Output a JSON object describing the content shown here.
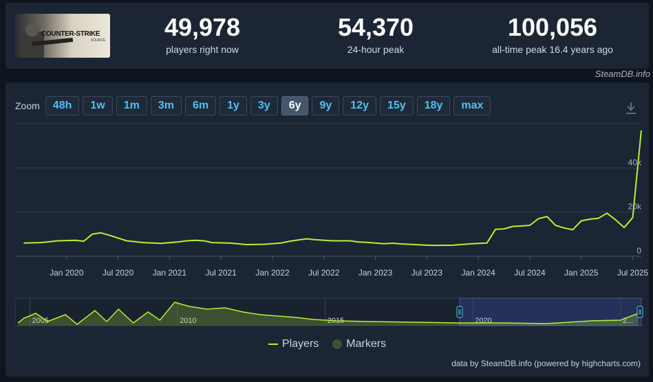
{
  "header": {
    "logo_text": "COUNTER-STRIKE",
    "logo_sub": "SOURCE",
    "stats": [
      {
        "value": "49,978",
        "label": "players right now"
      },
      {
        "value": "54,370",
        "label": "24-hour peak"
      },
      {
        "value": "100,056",
        "label": "all-time peak 16.4 years ago"
      }
    ],
    "credit": "SteamDB.info"
  },
  "zoom": {
    "label": "Zoom",
    "options": [
      "48h",
      "1w",
      "1m",
      "3m",
      "6m",
      "1y",
      "3y",
      "6y",
      "9y",
      "12y",
      "15y",
      "18y",
      "max"
    ],
    "active": "6y"
  },
  "icons": {
    "download": "download-icon"
  },
  "colors": {
    "accent": "#4fc1f5",
    "series": "#b6f334",
    "markers": "#3d5038",
    "panel": "#1c2533"
  },
  "chart_data": {
    "type": "line",
    "series": [
      {
        "name": "Players",
        "x": [
          "2019-08",
          "2019-10",
          "2019-12",
          "2020-02",
          "2020-03",
          "2020-04",
          "2020-05",
          "2020-06",
          "2020-08",
          "2020-10",
          "2020-12",
          "2021-02",
          "2021-03",
          "2021-04",
          "2021-05",
          "2021-06",
          "2021-08",
          "2021-10",
          "2021-12",
          "2022-02",
          "2022-03",
          "2022-04",
          "2022-05",
          "2022-06",
          "2022-08",
          "2022-10",
          "2022-11",
          "2022-12",
          "2023-02",
          "2023-03",
          "2023-04",
          "2023-06",
          "2023-07",
          "2023-08",
          "2023-10",
          "2023-12",
          "2024-01",
          "2024-02",
          "2024-03",
          "2024-04",
          "2024-05",
          "2024-06",
          "2024-07",
          "2024-08",
          "2024-09",
          "2024-10",
          "2024-11",
          "2024-12",
          "2025-01",
          "2025-02",
          "2025-03",
          "2025-04",
          "2025-05",
          "2025-06",
          "2025-07"
        ],
        "values": [
          6000,
          6200,
          7000,
          7200,
          6800,
          10000,
          10600,
          9500,
          7000,
          6200,
          5800,
          6500,
          7000,
          7200,
          7000,
          6200,
          6000,
          5300,
          5400,
          6000,
          6800,
          7400,
          7900,
          7500,
          7000,
          7000,
          6500,
          6300,
          5700,
          5900,
          5600,
          5200,
          5000,
          4900,
          5000,
          5600,
          5800,
          6000,
          12200,
          12400,
          13500,
          13700,
          14000,
          17000,
          18000,
          14000,
          12800,
          12000,
          16000,
          16800,
          17200,
          19500,
          16500,
          13000,
          17500
        ]
      },
      {
        "name": "Players (latest)",
        "x": [
          "2025-07",
          "2025-08"
        ],
        "values": [
          17500,
          57000
        ]
      }
    ],
    "x_tick_labels": [
      "Jan 2020",
      "Jul 2020",
      "Jan 2021",
      "Jul 2021",
      "Jan 2022",
      "Jul 2022",
      "Jan 2023",
      "Jul 2023",
      "Jan 2024",
      "Jul 2024",
      "Jan 2025",
      "Jul 2025"
    ],
    "y_tick_labels": [
      "0",
      "20k",
      "40k"
    ],
    "ylim": [
      0,
      60000
    ],
    "grid": true,
    "legend": {
      "position": "bottom-center",
      "entries": [
        "Players",
        "Markers"
      ]
    },
    "navigator": {
      "tick_labels": [
        "2005",
        "2010",
        "2015",
        "2020",
        "2..."
      ],
      "range_handles": true
    }
  },
  "footer": {
    "credit": "data by SteamDB.info (powered by highcharts.com)"
  }
}
